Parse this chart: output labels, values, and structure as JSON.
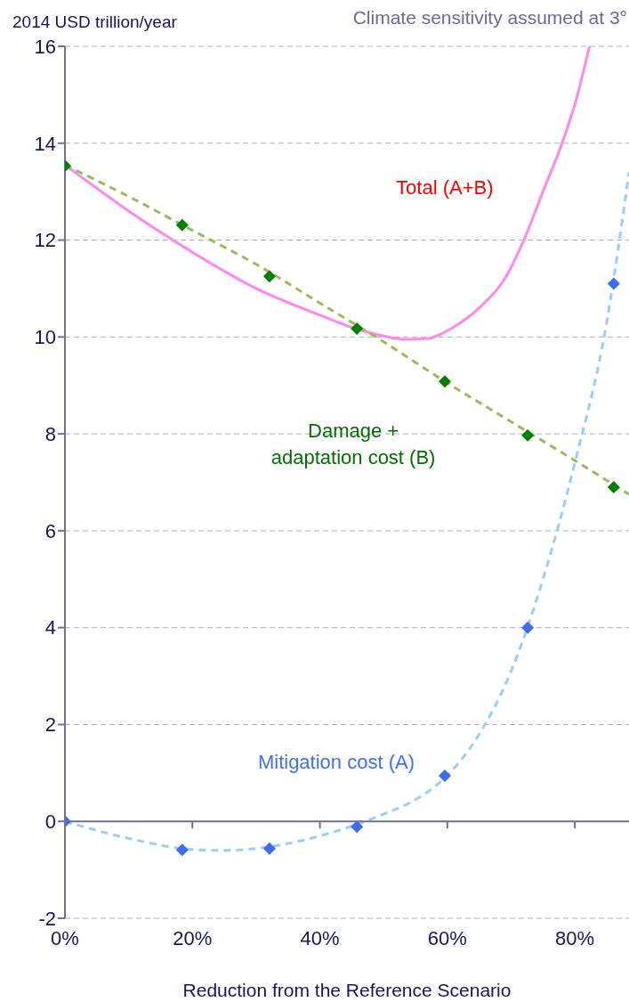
{
  "chart_data": {
    "type": "scatter",
    "title": "Climate sensitivity assumed at 3°",
    "ylabel": "2014 USD trillion/year",
    "xlabel": "Reduction from the Reference  Scenario",
    "xlim": [
      0,
      88.5
    ],
    "xticks": [
      {
        "value": 0,
        "label": "0%"
      },
      {
        "value": 20,
        "label": "20%"
      },
      {
        "value": 40,
        "label": "40%"
      },
      {
        "value": 60,
        "label": "60%"
      },
      {
        "value": 80,
        "label": "80%"
      }
    ],
    "ylim": [
      -2,
      16
    ],
    "yticks": [
      -2,
      0,
      2,
      4,
      6,
      8,
      10,
      12,
      14,
      16
    ],
    "grid": "y",
    "legend": false,
    "ref_lines": [
      {
        "axis": "y",
        "value": 0,
        "color": "#7070a0",
        "line_style": "solid"
      }
    ],
    "marker": "diamond",
    "series": [
      {
        "type": "line",
        "name": "Total (A+B)",
        "color": "#ff88ee",
        "line_style": "solid",
        "marker": "none",
        "x": [
          0,
          10,
          20,
          30,
          40,
          45,
          50,
          53.7,
          57,
          60,
          65,
          69,
          72,
          75,
          78,
          80,
          82.3
        ],
        "values": [
          13.55,
          12.6,
          11.75,
          11.0,
          10.45,
          10.2,
          10.02,
          9.95,
          9.97,
          10.13,
          10.6,
          11.2,
          12.0,
          13.0,
          14.0,
          14.8,
          16.0
        ]
      },
      {
        "type": "line",
        "color": "#9bbb59",
        "line_style": "dashed",
        "marker": "none",
        "x": [
          0,
          10,
          20,
          30,
          40,
          50,
          60,
          70,
          80,
          88.5
        ],
        "values": [
          13.55,
          12.9,
          12.2,
          11.5,
          10.7,
          9.9,
          9.05,
          8.25,
          7.45,
          6.75
        ]
      },
      {
        "type": "line",
        "color": "#99ccff",
        "line_style": "dashed",
        "marker": "none",
        "x": [
          0,
          10,
          20,
          25,
          30,
          40,
          50,
          55,
          60,
          65,
          70,
          75,
          80,
          85,
          88.5
        ],
        "values": [
          0,
          -0.35,
          -0.58,
          -0.6,
          -0.56,
          -0.3,
          0.15,
          0.45,
          0.95,
          1.8,
          3.1,
          5.0,
          7.4,
          10.3,
          13.4
        ]
      },
      {
        "name": "Damage + adaptation cost (B)",
        "color": "#008000",
        "x": [
          0,
          18.4,
          32.1,
          45.8,
          59.6,
          72.6,
          86.1
        ],
        "values": [
          13.53,
          12.31,
          11.25,
          10.17,
          9.08,
          7.97,
          6.9
        ]
      },
      {
        "name": "Mitigation cost (A)",
        "color": "#3c6cf0",
        "x": [
          0,
          18.4,
          32.1,
          45.8,
          59.6,
          72.6,
          86.1
        ],
        "values": [
          0,
          -0.59,
          -0.56,
          -0.11,
          0.94,
          4.0,
          11.1
        ]
      }
    ]
  }
}
